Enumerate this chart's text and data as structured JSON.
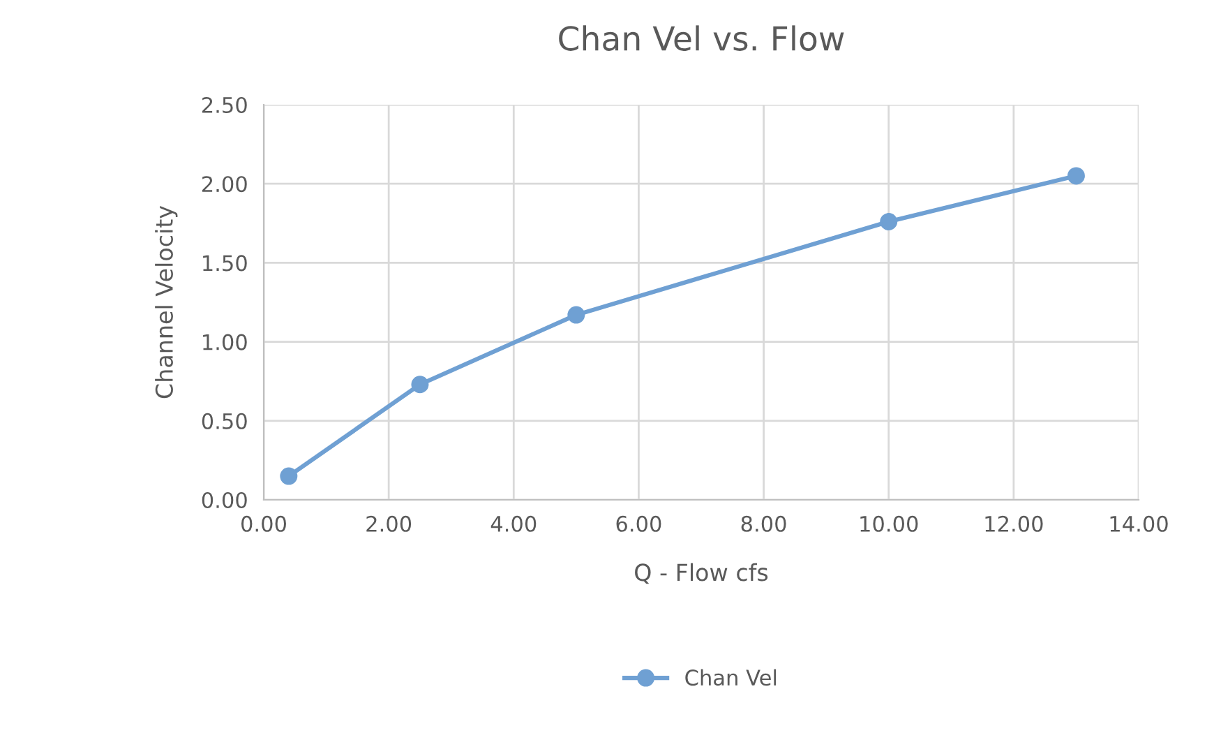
{
  "chart_data": {
    "type": "line",
    "title": "Chan Vel vs. Flow",
    "xlabel": "Q - Flow cfs",
    "ylabel": "Channel Velocity",
    "x": [
      0.4,
      2.5,
      5,
      10,
      13
    ],
    "series": [
      {
        "name": "Chan Vel",
        "color": "#6fa0d3",
        "values": [
          0.15,
          0.73,
          1.17,
          1.76,
          2.05
        ]
      }
    ],
    "xlim": [
      0,
      14
    ],
    "ylim": [
      0,
      2.5
    ],
    "xticks": [
      {
        "value": 0,
        "label": "0.00"
      },
      {
        "value": 2,
        "label": "2.00"
      },
      {
        "value": 4,
        "label": "4.00"
      },
      {
        "value": 6,
        "label": "6.00"
      },
      {
        "value": 8,
        "label": "8.00"
      },
      {
        "value": 10,
        "label": "10.00"
      },
      {
        "value": 12,
        "label": "12.00"
      },
      {
        "value": 14,
        "label": "14.00"
      }
    ],
    "yticks": [
      {
        "value": 0,
        "label": "0.00"
      },
      {
        "value": 0.5,
        "label": "0.50"
      },
      {
        "value": 1,
        "label": "1.00"
      },
      {
        "value": 1.5,
        "label": "1.50"
      },
      {
        "value": 2,
        "label": "2.00"
      },
      {
        "value": 2.5,
        "label": "2.50"
      }
    ],
    "grid": true,
    "legend": "bottom",
    "marker": "circle",
    "line_style": "solid"
  }
}
